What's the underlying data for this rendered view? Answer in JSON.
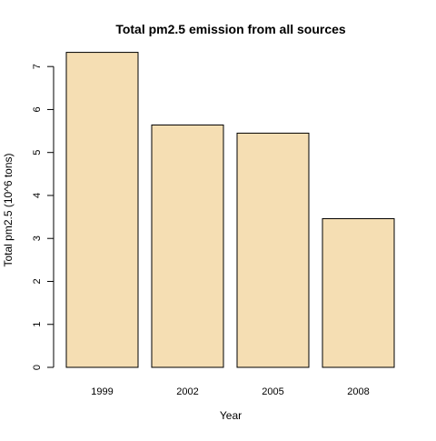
{
  "colors": {
    "bar_fill": "#f5deb3",
    "bar_stroke": "#000000",
    "axis": "#000000",
    "background": "#ffffff"
  },
  "chart_data": {
    "type": "bar",
    "title": "Total pm2.5 emission from all sources",
    "xlabel": "Year",
    "ylabel": "Total pm2.5 (10^6 tons)",
    "categories": [
      "1999",
      "2002",
      "2005",
      "2008"
    ],
    "values": [
      7.33,
      5.64,
      5.45,
      3.46
    ],
    "ylim": [
      0,
      7.3
    ],
    "yticks": [
      0,
      1,
      2,
      3,
      4,
      5,
      6,
      7
    ],
    "grid": false,
    "legend": "none"
  }
}
